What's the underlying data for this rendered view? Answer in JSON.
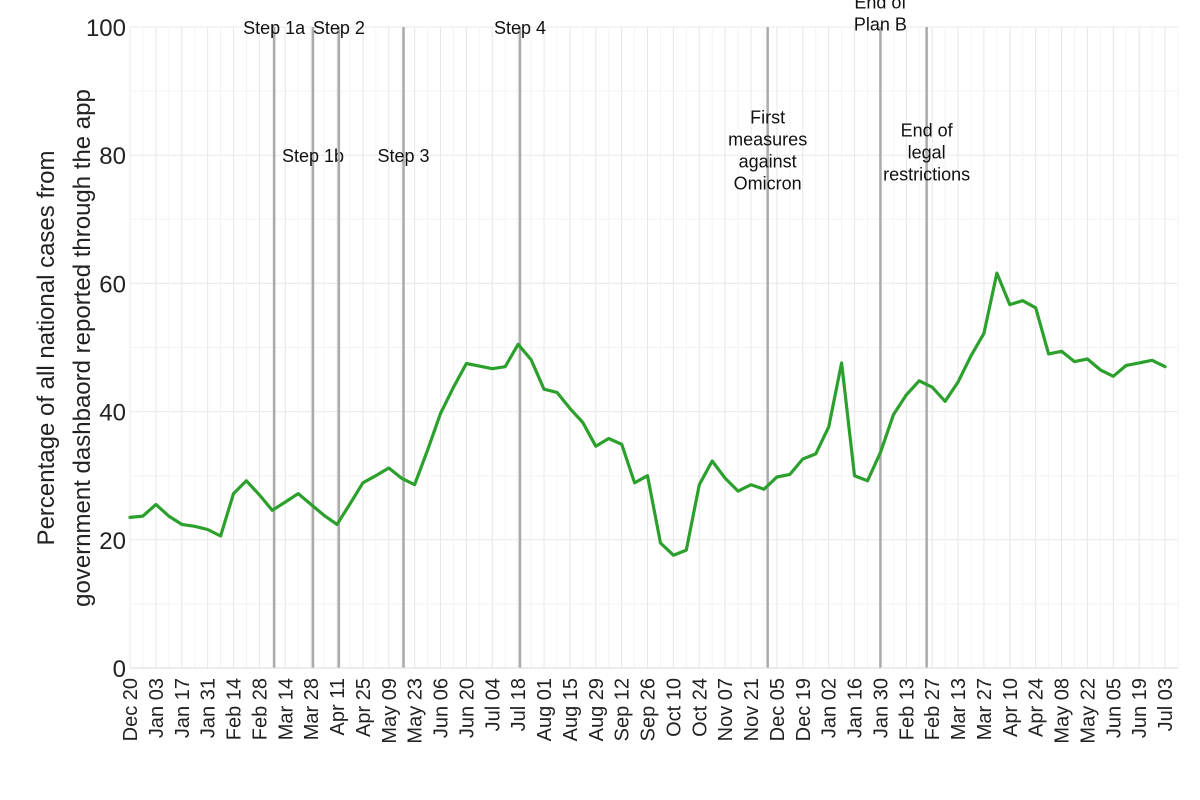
{
  "chart_data": {
    "type": "line",
    "ylabel_lines": [
      "Percentage of all national cases from",
      "government dashbaord reported through the app"
    ],
    "ylim": [
      0,
      100
    ],
    "yticks": [
      0,
      20,
      40,
      60,
      80,
      100
    ],
    "grid": true,
    "xlim": [
      "2020-12-20",
      "2022-07-10"
    ],
    "xtick_labels": [
      {
        "date": "2020-12-20",
        "label": "Dec 20"
      },
      {
        "date": "2021-01-03",
        "label": "Jan 03"
      },
      {
        "date": "2021-01-17",
        "label": "Jan 17"
      },
      {
        "date": "2021-01-31",
        "label": "Jan 31"
      },
      {
        "date": "2021-02-14",
        "label": "Feb 14"
      },
      {
        "date": "2021-02-28",
        "label": "Feb 28"
      },
      {
        "date": "2021-03-14",
        "label": "Mar 14"
      },
      {
        "date": "2021-03-28",
        "label": "Mar 28"
      },
      {
        "date": "2021-04-11",
        "label": "Apr 11"
      },
      {
        "date": "2021-04-25",
        "label": "Apr 25"
      },
      {
        "date": "2021-05-09",
        "label": "May 09"
      },
      {
        "date": "2021-05-23",
        "label": "May 23"
      },
      {
        "date": "2021-06-06",
        "label": "Jun 06"
      },
      {
        "date": "2021-06-20",
        "label": "Jun 20"
      },
      {
        "date": "2021-07-04",
        "label": "Jul 04"
      },
      {
        "date": "2021-07-18",
        "label": "Jul 18"
      },
      {
        "date": "2021-08-01",
        "label": "Aug 01"
      },
      {
        "date": "2021-08-15",
        "label": "Aug 15"
      },
      {
        "date": "2021-08-29",
        "label": "Aug 29"
      },
      {
        "date": "2021-09-12",
        "label": "Sep 12"
      },
      {
        "date": "2021-09-26",
        "label": "Sep 26"
      },
      {
        "date": "2021-10-10",
        "label": "Oct 10"
      },
      {
        "date": "2021-10-24",
        "label": "Oct 24"
      },
      {
        "date": "2021-11-07",
        "label": "Nov 07"
      },
      {
        "date": "2021-11-21",
        "label": "Nov 21"
      },
      {
        "date": "2021-12-05",
        "label": "Dec 05"
      },
      {
        "date": "2021-12-19",
        "label": "Dec 19"
      },
      {
        "date": "2022-01-02",
        "label": "Jan 02"
      },
      {
        "date": "2022-01-16",
        "label": "Jan 16"
      },
      {
        "date": "2022-01-30",
        "label": "Jan 30"
      },
      {
        "date": "2022-02-13",
        "label": "Feb 13"
      },
      {
        "date": "2022-02-27",
        "label": "Feb 27"
      },
      {
        "date": "2022-03-13",
        "label": "Mar 13"
      },
      {
        "date": "2022-03-27",
        "label": "Mar 27"
      },
      {
        "date": "2022-04-10",
        "label": "Apr 10"
      },
      {
        "date": "2022-04-24",
        "label": "Apr 24"
      },
      {
        "date": "2022-05-08",
        "label": "May 08"
      },
      {
        "date": "2022-05-22",
        "label": "May 22"
      },
      {
        "date": "2022-06-05",
        "label": "Jun 05"
      },
      {
        "date": "2022-06-19",
        "label": "Jun 19"
      },
      {
        "date": "2022-07-03",
        "label": "Jul 03"
      }
    ],
    "series": [
      {
        "color": "#2ca02c",
        "points": [
          {
            "x": "2020-12-20",
            "y": 23.5
          },
          {
            "x": "2020-12-27",
            "y": 23.7
          },
          {
            "x": "2021-01-03",
            "y": 25.5
          },
          {
            "x": "2021-01-10",
            "y": 23.7
          },
          {
            "x": "2021-01-17",
            "y": 22.4
          },
          {
            "x": "2021-01-24",
            "y": 22.1
          },
          {
            "x": "2021-01-31",
            "y": 21.6
          },
          {
            "x": "2021-02-07",
            "y": 20.6
          },
          {
            "x": "2021-02-14",
            "y": 27.2
          },
          {
            "x": "2021-02-21",
            "y": 29.2
          },
          {
            "x": "2021-02-28",
            "y": 27.0
          },
          {
            "x": "2021-03-07",
            "y": 24.6
          },
          {
            "x": "2021-03-14",
            "y": 25.9
          },
          {
            "x": "2021-03-21",
            "y": 27.2
          },
          {
            "x": "2021-03-28",
            "y": 25.5
          },
          {
            "x": "2021-04-04",
            "y": 23.8
          },
          {
            "x": "2021-04-11",
            "y": 22.4
          },
          {
            "x": "2021-04-18",
            "y": 25.6
          },
          {
            "x": "2021-04-25",
            "y": 28.9
          },
          {
            "x": "2021-05-02",
            "y": 30.0
          },
          {
            "x": "2021-05-09",
            "y": 31.2
          },
          {
            "x": "2021-05-16",
            "y": 29.6
          },
          {
            "x": "2021-05-23",
            "y": 28.6
          },
          {
            "x": "2021-05-30",
            "y": 34.0
          },
          {
            "x": "2021-06-06",
            "y": 39.7
          },
          {
            "x": "2021-06-13",
            "y": 43.8
          },
          {
            "x": "2021-06-20",
            "y": 47.5
          },
          {
            "x": "2021-06-27",
            "y": 47.1
          },
          {
            "x": "2021-07-04",
            "y": 46.7
          },
          {
            "x": "2021-07-11",
            "y": 47.0
          },
          {
            "x": "2021-07-18",
            "y": 50.5
          },
          {
            "x": "2021-07-25",
            "y": 48.1
          },
          {
            "x": "2021-08-01",
            "y": 43.5
          },
          {
            "x": "2021-08-08",
            "y": 43.0
          },
          {
            "x": "2021-08-15",
            "y": 40.5
          },
          {
            "x": "2021-08-22",
            "y": 38.3
          },
          {
            "x": "2021-08-29",
            "y": 34.6
          },
          {
            "x": "2021-09-05",
            "y": 35.8
          },
          {
            "x": "2021-09-12",
            "y": 34.9
          },
          {
            "x": "2021-09-19",
            "y": 28.9
          },
          {
            "x": "2021-09-26",
            "y": 30.0
          },
          {
            "x": "2021-10-03",
            "y": 19.5
          },
          {
            "x": "2021-10-10",
            "y": 17.6
          },
          {
            "x": "2021-10-17",
            "y": 18.4
          },
          {
            "x": "2021-10-24",
            "y": 28.6
          },
          {
            "x": "2021-10-31",
            "y": 32.3
          },
          {
            "x": "2021-11-07",
            "y": 29.6
          },
          {
            "x": "2021-11-14",
            "y": 27.6
          },
          {
            "x": "2021-11-21",
            "y": 28.6
          },
          {
            "x": "2021-11-28",
            "y": 27.9
          },
          {
            "x": "2021-12-05",
            "y": 29.8
          },
          {
            "x": "2021-12-12",
            "y": 30.2
          },
          {
            "x": "2021-12-19",
            "y": 32.6
          },
          {
            "x": "2021-12-26",
            "y": 33.4
          },
          {
            "x": "2022-01-02",
            "y": 37.6
          },
          {
            "x": "2022-01-09",
            "y": 47.6
          },
          {
            "x": "2022-01-16",
            "y": 30.0
          },
          {
            "x": "2022-01-23",
            "y": 29.2
          },
          {
            "x": "2022-01-30",
            "y": 33.6
          },
          {
            "x": "2022-02-06",
            "y": 39.5
          },
          {
            "x": "2022-02-13",
            "y": 42.6
          },
          {
            "x": "2022-02-20",
            "y": 44.8
          },
          {
            "x": "2022-02-27",
            "y": 43.8
          },
          {
            "x": "2022-03-06",
            "y": 41.6
          },
          {
            "x": "2022-03-13",
            "y": 44.6
          },
          {
            "x": "2022-03-20",
            "y": 48.7
          },
          {
            "x": "2022-03-27",
            "y": 52.2
          },
          {
            "x": "2022-04-03",
            "y": 61.6
          },
          {
            "x": "2022-04-10",
            "y": 56.7
          },
          {
            "x": "2022-04-17",
            "y": 57.3
          },
          {
            "x": "2022-04-24",
            "y": 56.2
          },
          {
            "x": "2022-05-01",
            "y": 49.0
          },
          {
            "x": "2022-05-08",
            "y": 49.4
          },
          {
            "x": "2022-05-15",
            "y": 47.8
          },
          {
            "x": "2022-05-22",
            "y": 48.2
          },
          {
            "x": "2022-05-29",
            "y": 46.5
          },
          {
            "x": "2022-06-05",
            "y": 45.5
          },
          {
            "x": "2022-06-12",
            "y": 47.2
          },
          {
            "x": "2022-06-19",
            "y": 47.6
          },
          {
            "x": "2022-06-26",
            "y": 48.0
          },
          {
            "x": "2022-07-03",
            "y": 47.0
          }
        ]
      }
    ],
    "vlines": [
      {
        "date": "2021-03-08",
        "lines": [
          "Step 1a"
        ],
        "y": 100
      },
      {
        "date": "2021-03-29",
        "lines": [
          "Step 1b"
        ],
        "y": 80
      },
      {
        "date": "2021-04-12",
        "lines": [
          "Step 2"
        ],
        "y": 100
      },
      {
        "date": "2021-05-17",
        "lines": [
          "Step 3"
        ],
        "y": 80
      },
      {
        "date": "2021-07-19",
        "lines": [
          "Step 4"
        ],
        "y": 100
      },
      {
        "date": "2021-11-30",
        "lines": [
          "First",
          "measures",
          "against",
          "Omicron"
        ],
        "y": 86
      },
      {
        "date": "2022-01-30",
        "lines": [
          "End of",
          "Plan B"
        ],
        "y": 104
      },
      {
        "date": "2022-02-24",
        "lines": [
          "End of",
          "legal",
          "restrictions"
        ],
        "y": 84
      }
    ],
    "vline_color": "#aaaaaa"
  }
}
